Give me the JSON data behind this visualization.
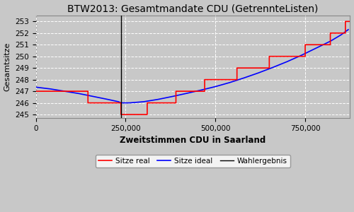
{
  "title": "BTW2013: Gesamtmandate CDU (GetrennteListen)",
  "xlabel": "Zweitstimmen CDU in Saarland",
  "ylabel": "Gesamtsitze",
  "background_color": "#c8c8c8",
  "grid_color": "white",
  "xlim": [
    0,
    875000
  ],
  "ylim": [
    244.7,
    253.5
  ],
  "yticks": [
    245,
    246,
    247,
    248,
    249,
    250,
    251,
    252,
    253
  ],
  "xticks": [
    0,
    250000,
    500000,
    750000
  ],
  "xticklabels": [
    "0",
    "250,000",
    "500,000",
    "750,000"
  ],
  "wahlergebnis_x": 237000,
  "blue_line_x": [
    0,
    40000,
    80000,
    120000,
    160000,
    200000,
    230000,
    237000,
    260000,
    300000,
    340000,
    380000,
    420000,
    460000,
    500000,
    540000,
    580000,
    620000,
    660000,
    700000,
    740000,
    780000,
    820000,
    850000,
    870000
  ],
  "blue_line_y": [
    247.35,
    247.2,
    247.0,
    246.8,
    246.55,
    246.3,
    246.1,
    246.0,
    246.0,
    246.1,
    246.3,
    246.55,
    246.82,
    247.1,
    247.4,
    247.75,
    248.15,
    248.58,
    249.05,
    249.55,
    250.1,
    250.7,
    251.3,
    251.85,
    252.3
  ],
  "red_steps_x": [
    0,
    145000,
    145001,
    237000,
    237001,
    237001,
    310000,
    310001,
    390000,
    390001,
    470000,
    470001,
    560000,
    560001,
    650000,
    650001,
    750000,
    750001,
    820000,
    820001,
    862000,
    862001,
    875000
  ],
  "red_steps_y": [
    247,
    247,
    246,
    246,
    245,
    245,
    245,
    246,
    246,
    247,
    247,
    248,
    248,
    249,
    249,
    250,
    250,
    251,
    251,
    252,
    252,
    253,
    253
  ]
}
